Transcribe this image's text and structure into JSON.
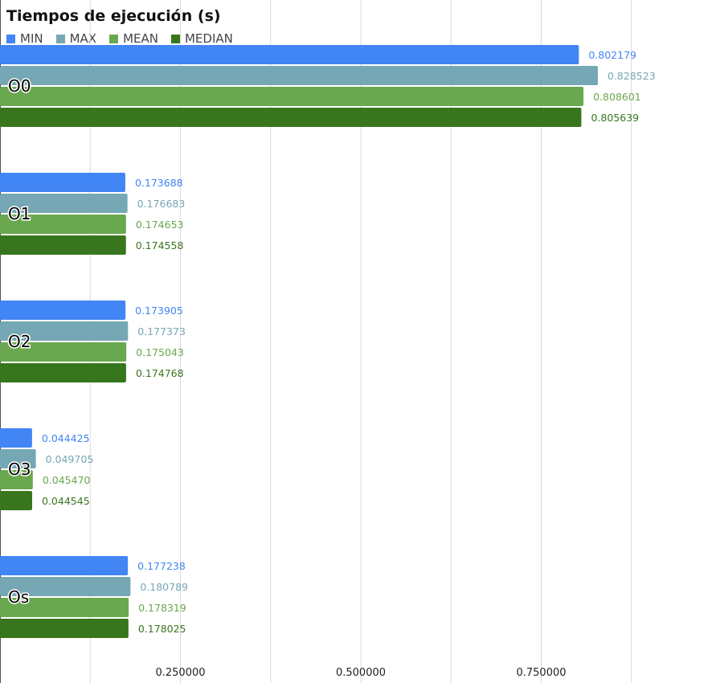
{
  "chart_data": {
    "type": "bar",
    "orientation": "horizontal",
    "title": "Tiempos de ejecución (s)",
    "categories": [
      "O0",
      "O1",
      "O2",
      "O3",
      "Os"
    ],
    "series": [
      {
        "name": "MIN",
        "color": "#4285f4",
        "values": [
          0.802179,
          0.173688,
          0.173905,
          0.044425,
          0.177238
        ],
        "labels": [
          "0.802179",
          "0.173688",
          "0.173905",
          "0.044425",
          "0.177238"
        ]
      },
      {
        "name": "MAX",
        "color": "#76a7b4",
        "values": [
          0.828523,
          0.176683,
          0.177373,
          0.049705,
          0.180789
        ],
        "labels": [
          "0.828523",
          "0.176683",
          "0.177373",
          "0.049705",
          "0.180789"
        ]
      },
      {
        "name": "MEAN",
        "color": "#6aa84f",
        "values": [
          0.808601,
          0.174653,
          0.175043,
          0.04547,
          0.178319
        ],
        "labels": [
          "0.808601",
          "0.174653",
          "0.175043",
          "0.045470",
          "0.178319"
        ]
      },
      {
        "name": "MEDIAN",
        "color": "#38761d",
        "values": [
          0.805639,
          0.174558,
          0.174768,
          0.044545,
          0.178025
        ],
        "labels": [
          "0.805639",
          "0.174558",
          "0.174768",
          "0.044545",
          "0.178025"
        ]
      }
    ],
    "xlim": [
      0,
      1.0
    ],
    "x_ticks": [
      0.25,
      0.5,
      0.75
    ],
    "x_tick_labels": [
      "0.250000",
      "0.500000",
      "0.750000"
    ],
    "grid": true,
    "legend_position": "top-left"
  }
}
